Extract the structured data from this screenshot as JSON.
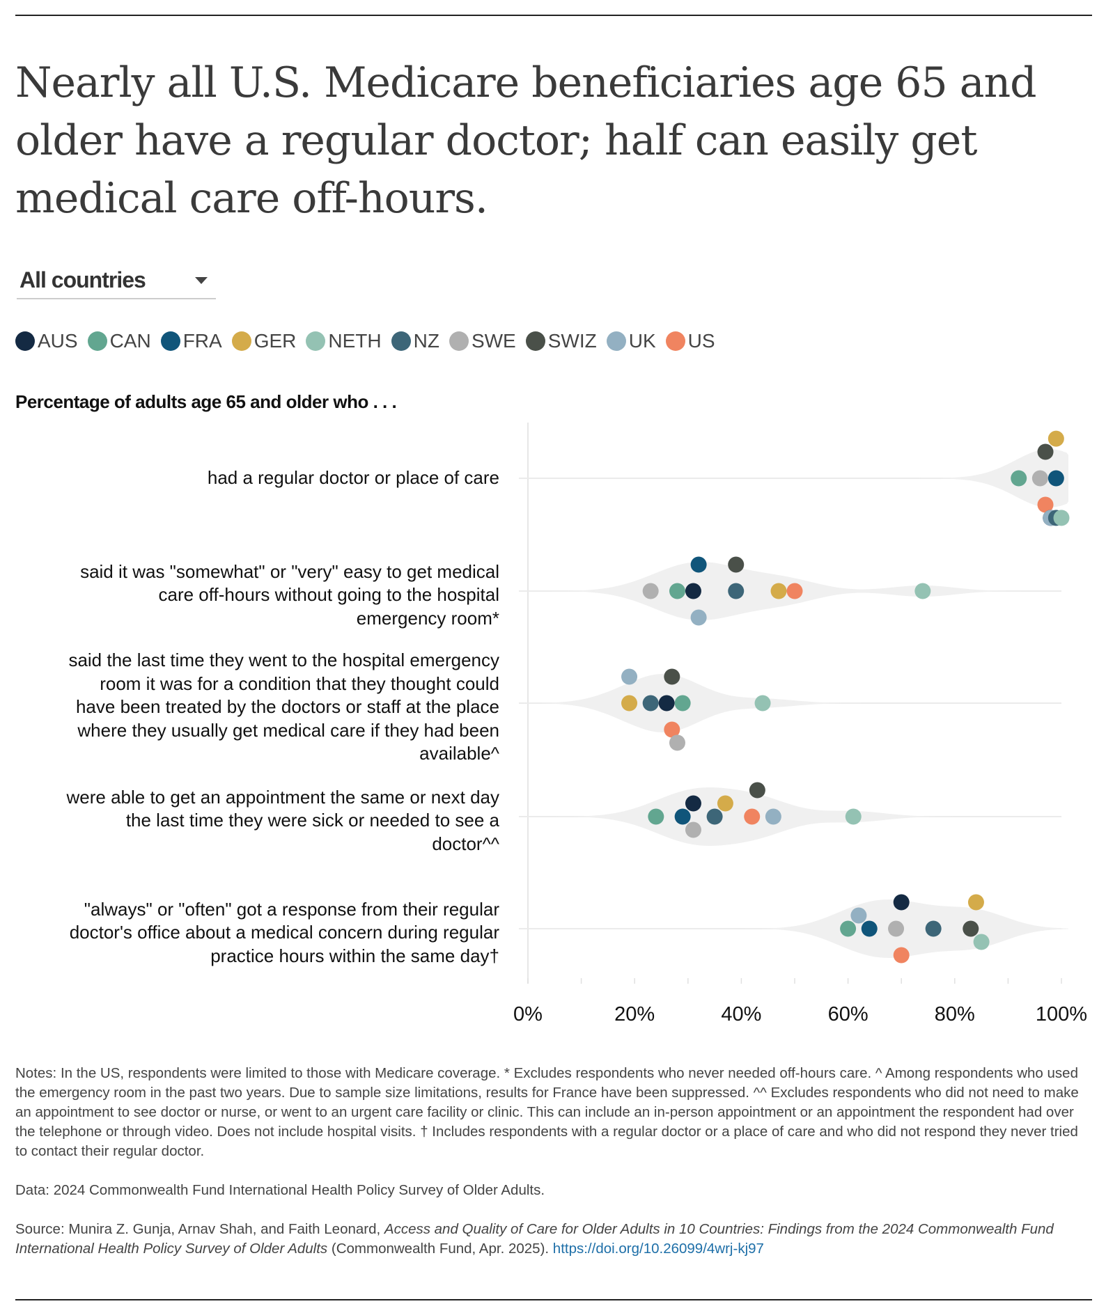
{
  "title": "Nearly all U.S. Medicare beneficiaries age 65 and older have a regular doctor; half can easily get medical care off-hours.",
  "dropdown": {
    "selected": "All countries"
  },
  "legend": [
    {
      "code": "AUS",
      "color": "#142a43"
    },
    {
      "code": "CAN",
      "color": "#62a690"
    },
    {
      "code": "FRA",
      "color": "#10557a"
    },
    {
      "code": "GER",
      "color": "#d4ab4a"
    },
    {
      "code": "NETH",
      "color": "#94c2b3"
    },
    {
      "code": "NZ",
      "color": "#3d6678"
    },
    {
      "code": "SWE",
      "color": "#b0b0b0"
    },
    {
      "code": "SWIZ",
      "color": "#4a5049"
    },
    {
      "code": "UK",
      "color": "#93b0c2"
    },
    {
      "code": "US",
      "color": "#f08460"
    }
  ],
  "subheading": "Percentage of adults age 65 and older who . . .",
  "chart_data": {
    "type": "scatter",
    "subtype": "beeswarm with violin density",
    "xlim": [
      0,
      100
    ],
    "x_ticks": [
      "0%",
      "20%",
      "40%",
      "60%",
      "80%",
      "100%"
    ],
    "grid": "vertical baseline at 0%, horizontal line per row",
    "categories": [
      "had a regular doctor or place of care",
      "said it was \"somewhat\" or \"very\" easy to get medical care off-hours without going to the hospital emergency room*",
      "said the last time they went to the hospital emergency room it was for a condition that they thought could have been treated by the doctors or staff at the place where they usually get medical care if they had been available^",
      "were able to get an appointment the same or next day the last time they were sick or needed to see a doctor^^",
      "\"always\" or \"often\" got a response from their regular doctor's office about a medical concern during regular practice hours within the same day†"
    ],
    "series": [
      {
        "name": "AUS",
        "values": [
          98,
          31,
          26,
          31,
          70
        ]
      },
      {
        "name": "CAN",
        "values": [
          92,
          28,
          29,
          24,
          60
        ]
      },
      {
        "name": "FRA",
        "values": [
          99,
          32,
          null,
          29,
          64
        ]
      },
      {
        "name": "GER",
        "values": [
          99,
          47,
          19,
          37,
          84
        ]
      },
      {
        "name": "NETH",
        "values": [
          100,
          74,
          44,
          61,
          85
        ]
      },
      {
        "name": "NZ",
        "values": [
          99,
          39,
          23,
          35,
          76
        ]
      },
      {
        "name": "SWE",
        "values": [
          96,
          23,
          28,
          31,
          69
        ]
      },
      {
        "name": "SWIZ",
        "values": [
          97,
          39,
          27,
          43,
          83
        ]
      },
      {
        "name": "UK",
        "values": [
          98,
          32,
          19,
          46,
          62
        ]
      },
      {
        "name": "US",
        "values": [
          97,
          50,
          27,
          42,
          70
        ]
      }
    ]
  },
  "notes": {
    "notes_text": "Notes: In the US, respondents were limited to those with Medicare coverage. * Excludes respondents who never needed off-hours care. ^ Among respondents who used the emergency room in the past two years. Due to sample size limitations, results for France have been suppressed. ^^ Excludes respondents who did not need to make an appointment to see doctor or nurse, or went to an urgent care facility or clinic. This can include an in-person appointment or an appointment the respondent had over the telephone or through video. Does not include hospital visits. † Includes respondents with a regular doctor or a place of care and who did not respond they never tried to contact their regular doctor.",
    "data_text": "Data: 2024 Commonwealth Fund International Health Policy Survey of Older Adults.",
    "source_prefix": "Source: Munira Z. Gunja, Arnav Shah, and Faith Leonard, ",
    "source_title": "Access and Quality of Care for Older Adults in 10 Countries: Findings from the 2024 Commonwealth Fund International Health Policy Survey of Older Adults",
    "source_suffix": " (Commonwealth Fund, Apr. 2025). ",
    "source_link": "https://doi.org/10.26099/4wrj-kj97"
  }
}
